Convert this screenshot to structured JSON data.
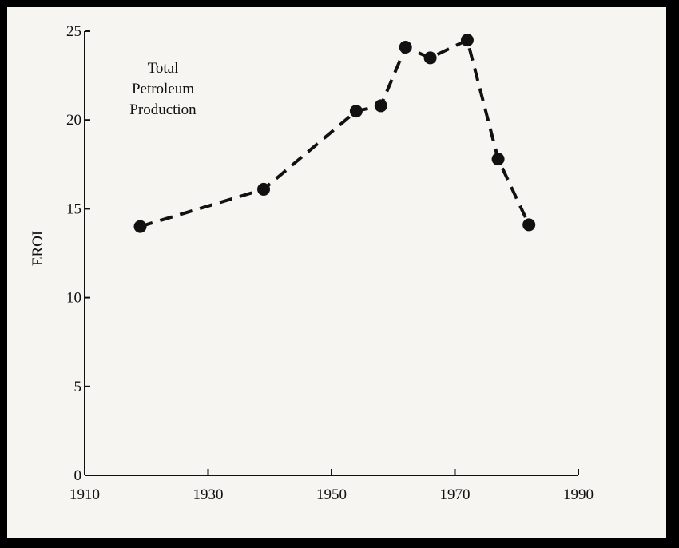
{
  "chart_data": {
    "type": "line",
    "xlabel": "",
    "ylabel": "EROI",
    "xlim": [
      1910,
      1990
    ],
    "ylim": [
      0,
      25
    ],
    "x_ticks": [
      1910,
      1930,
      1950,
      1970,
      1990
    ],
    "y_ticks": [
      0,
      5,
      10,
      15,
      20,
      25
    ],
    "grid": false,
    "line_style": "dashed",
    "marker": "filled-circle",
    "color": "#111111",
    "annotation": {
      "lines": [
        "Total",
        "Petroleum",
        "Production"
      ]
    },
    "series": [
      {
        "x": [
          1919,
          1939,
          1954,
          1958,
          1962,
          1966,
          1972,
          1977,
          1982
        ],
        "y": [
          14.0,
          16.1,
          20.5,
          20.8,
          24.1,
          23.5,
          24.5,
          17.8,
          14.1
        ]
      }
    ]
  }
}
